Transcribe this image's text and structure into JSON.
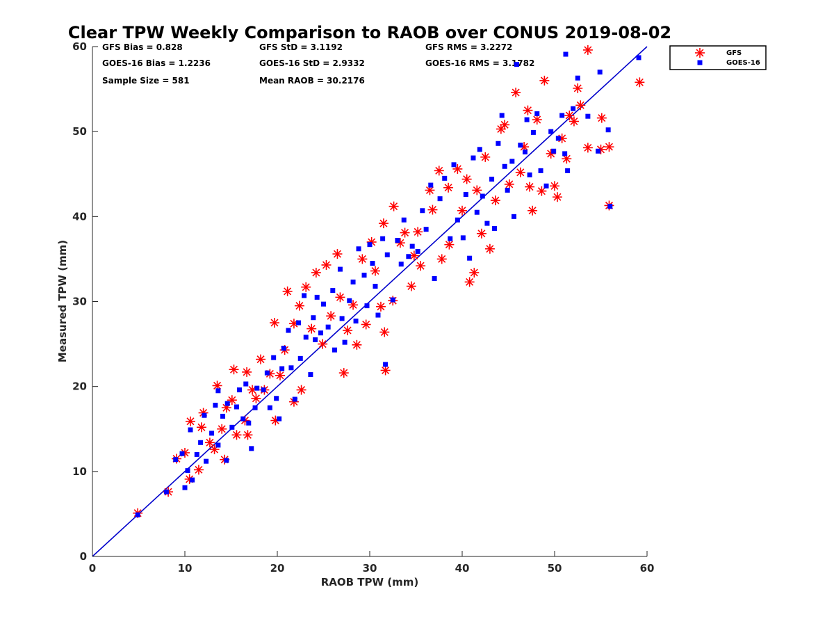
{
  "colors": {
    "gfs": "#ff0000",
    "goes": "#0000ff",
    "ref_line": "#0000cc",
    "axis": "#262626"
  },
  "stats": {
    "gfs_bias": "GFS Bias = 0.828",
    "goes_bias": "GOES-16 Bias = 1.2236",
    "sample_size": "Sample Size = 581",
    "gfs_std": "GFS StD = 3.1192",
    "goes_std": "GOES-16 StD = 2.9332",
    "mean_raob": "Mean RAOB = 30.2176",
    "gfs_rms": "GFS RMS = 3.2272",
    "goes_rms": "GOES-16 RMS = 3.1782"
  },
  "chart_data": {
    "type": "scatter",
    "title": "Clear TPW Weekly Comparison to RAOB over CONUS 2019-08-02",
    "xlabel": "RAOB TPW (mm)",
    "ylabel": "Measured TPW (mm)",
    "xlim": [
      0,
      60
    ],
    "ylim": [
      0,
      60
    ],
    "xticks": [
      "0",
      "10",
      "20",
      "30",
      "40",
      "50",
      "60"
    ],
    "yticks": [
      "0",
      "10",
      "20",
      "30",
      "40",
      "50",
      "60"
    ],
    "grid": false,
    "legend_position": "outside-top-right",
    "reference_line": "y = x",
    "series": [
      {
        "name": "GFS",
        "marker": "asterisk",
        "points": [
          [
            4.9,
            5.1
          ],
          [
            8.2,
            7.6
          ],
          [
            9.1,
            11.5
          ],
          [
            10.0,
            12.2
          ],
          [
            10.6,
            15.9
          ],
          [
            10.5,
            9.1
          ],
          [
            11.8,
            15.2
          ],
          [
            12.0,
            16.9
          ],
          [
            11.5,
            10.2
          ],
          [
            12.7,
            13.4
          ],
          [
            13.5,
            20.1
          ],
          [
            13.2,
            12.6
          ],
          [
            14.0,
            15.0
          ],
          [
            14.5,
            17.5
          ],
          [
            14.3,
            11.4
          ],
          [
            15.3,
            22.0
          ],
          [
            15.1,
            18.4
          ],
          [
            15.6,
            14.3
          ],
          [
            16.5,
            16.0
          ],
          [
            16.7,
            21.7
          ],
          [
            16.8,
            14.3
          ],
          [
            17.3,
            19.6
          ],
          [
            17.7,
            18.6
          ],
          [
            18.2,
            23.2
          ],
          [
            18.6,
            19.6
          ],
          [
            19.2,
            21.5
          ],
          [
            19.7,
            27.5
          ],
          [
            19.8,
            16.0
          ],
          [
            20.3,
            21.3
          ],
          [
            20.8,
            24.3
          ],
          [
            21.1,
            31.2
          ],
          [
            21.8,
            27.4
          ],
          [
            21.8,
            18.2
          ],
          [
            22.4,
            29.5
          ],
          [
            22.6,
            19.6
          ],
          [
            23.1,
            31.7
          ],
          [
            23.7,
            26.8
          ],
          [
            24.2,
            33.4
          ],
          [
            24.9,
            25.0
          ],
          [
            25.3,
            34.3
          ],
          [
            25.8,
            28.3
          ],
          [
            26.5,
            35.6
          ],
          [
            26.8,
            30.5
          ],
          [
            27.2,
            21.6
          ],
          [
            27.6,
            26.6
          ],
          [
            28.2,
            29.6
          ],
          [
            28.6,
            24.9
          ],
          [
            29.2,
            35.0
          ],
          [
            29.6,
            27.3
          ],
          [
            30.2,
            37.0
          ],
          [
            30.6,
            33.6
          ],
          [
            31.2,
            29.4
          ],
          [
            31.5,
            39.2
          ],
          [
            31.6,
            26.4
          ],
          [
            31.7,
            21.9
          ],
          [
            32.6,
            41.2
          ],
          [
            32.5,
            30.1
          ],
          [
            33.3,
            36.9
          ],
          [
            33.8,
            38.1
          ],
          [
            34.5,
            31.8
          ],
          [
            34.8,
            35.4
          ],
          [
            35.2,
            38.2
          ],
          [
            35.5,
            34.2
          ],
          [
            36.5,
            43.1
          ],
          [
            36.8,
            40.8
          ],
          [
            37.5,
            45.4
          ],
          [
            37.8,
            35.0
          ],
          [
            38.5,
            43.4
          ],
          [
            38.6,
            36.7
          ],
          [
            39.5,
            45.6
          ],
          [
            40.0,
            40.7
          ],
          [
            40.5,
            44.4
          ],
          [
            40.8,
            32.3
          ],
          [
            41.3,
            33.4
          ],
          [
            41.6,
            43.1
          ],
          [
            42.1,
            38.0
          ],
          [
            42.5,
            47.0
          ],
          [
            43.0,
            36.2
          ],
          [
            43.6,
            41.9
          ],
          [
            44.2,
            50.3
          ],
          [
            44.6,
            50.8
          ],
          [
            45.1,
            43.8
          ],
          [
            45.8,
            54.6
          ],
          [
            46.3,
            45.2
          ],
          [
            46.7,
            48.2
          ],
          [
            47.1,
            52.5
          ],
          [
            47.3,
            43.5
          ],
          [
            47.6,
            40.7
          ],
          [
            48.1,
            51.4
          ],
          [
            48.6,
            43.0
          ],
          [
            48.9,
            56.0
          ],
          [
            49.6,
            47.4
          ],
          [
            50.0,
            43.6
          ],
          [
            50.3,
            42.3
          ],
          [
            50.8,
            49.2
          ],
          [
            51.3,
            46.8
          ],
          [
            51.6,
            51.9
          ],
          [
            52.1,
            51.2
          ],
          [
            52.5,
            55.1
          ],
          [
            52.8,
            53.1
          ],
          [
            53.6,
            48.1
          ],
          [
            53.6,
            59.6
          ],
          [
            55.1,
            51.6
          ],
          [
            55.0,
            47.9
          ],
          [
            55.9,
            48.2
          ],
          [
            55.9,
            41.3
          ],
          [
            59.2,
            55.8
          ]
        ]
      },
      {
        "name": "GOES-16",
        "marker": "square",
        "points": [
          [
            4.9,
            4.9
          ],
          [
            8.0,
            7.6
          ],
          [
            9.0,
            11.4
          ],
          [
            9.7,
            12.1
          ],
          [
            10.0,
            8.1
          ],
          [
            10.3,
            10.1
          ],
          [
            10.6,
            14.9
          ],
          [
            10.8,
            9.0
          ],
          [
            11.3,
            12.0
          ],
          [
            11.7,
            13.4
          ],
          [
            12.1,
            16.6
          ],
          [
            12.3,
            11.2
          ],
          [
            12.9,
            14.5
          ],
          [
            13.3,
            17.8
          ],
          [
            13.6,
            19.5
          ],
          [
            13.6,
            13.1
          ],
          [
            14.1,
            16.5
          ],
          [
            14.5,
            11.3
          ],
          [
            14.6,
            18.0
          ],
          [
            15.1,
            15.2
          ],
          [
            15.6,
            17.6
          ],
          [
            15.9,
            19.6
          ],
          [
            16.3,
            16.2
          ],
          [
            16.6,
            20.3
          ],
          [
            16.9,
            15.7
          ],
          [
            17.2,
            12.7
          ],
          [
            17.6,
            17.5
          ],
          [
            17.8,
            19.8
          ],
          [
            18.5,
            19.6
          ],
          [
            18.9,
            21.6
          ],
          [
            19.2,
            17.5
          ],
          [
            19.6,
            23.4
          ],
          [
            19.9,
            18.6
          ],
          [
            20.2,
            16.2
          ],
          [
            20.5,
            22.1
          ],
          [
            20.7,
            24.5
          ],
          [
            21.2,
            26.6
          ],
          [
            21.5,
            22.2
          ],
          [
            21.9,
            18.5
          ],
          [
            22.3,
            27.5
          ],
          [
            22.5,
            23.3
          ],
          [
            22.9,
            30.7
          ],
          [
            23.1,
            25.8
          ],
          [
            23.6,
            21.4
          ],
          [
            23.9,
            28.1
          ],
          [
            24.1,
            25.5
          ],
          [
            24.3,
            30.5
          ],
          [
            24.7,
            26.3
          ],
          [
            25.0,
            29.7
          ],
          [
            25.5,
            27.0
          ],
          [
            26.0,
            31.3
          ],
          [
            26.2,
            24.3
          ],
          [
            26.8,
            33.8
          ],
          [
            27.0,
            28.0
          ],
          [
            27.3,
            25.2
          ],
          [
            27.8,
            30.1
          ],
          [
            28.2,
            32.3
          ],
          [
            28.5,
            27.7
          ],
          [
            28.8,
            36.2
          ],
          [
            29.4,
            33.1
          ],
          [
            29.7,
            29.5
          ],
          [
            30.0,
            36.7
          ],
          [
            30.3,
            34.5
          ],
          [
            30.6,
            31.8
          ],
          [
            30.9,
            28.4
          ],
          [
            31.4,
            37.4
          ],
          [
            31.7,
            22.6
          ],
          [
            31.9,
            35.5
          ],
          [
            32.5,
            30.2
          ],
          [
            33.0,
            37.2
          ],
          [
            33.4,
            34.4
          ],
          [
            33.7,
            39.6
          ],
          [
            34.2,
            35.3
          ],
          [
            34.6,
            36.5
          ],
          [
            35.2,
            35.9
          ],
          [
            35.7,
            40.7
          ],
          [
            36.1,
            38.5
          ],
          [
            36.6,
            43.7
          ],
          [
            37.0,
            32.7
          ],
          [
            37.6,
            42.1
          ],
          [
            38.1,
            44.5
          ],
          [
            38.7,
            37.4
          ],
          [
            39.1,
            46.1
          ],
          [
            39.5,
            39.6
          ],
          [
            40.1,
            37.5
          ],
          [
            40.4,
            42.6
          ],
          [
            40.8,
            35.1
          ],
          [
            41.2,
            46.9
          ],
          [
            41.6,
            40.5
          ],
          [
            41.9,
            47.9
          ],
          [
            42.2,
            42.4
          ],
          [
            42.7,
            39.2
          ],
          [
            43.2,
            44.4
          ],
          [
            43.5,
            38.6
          ],
          [
            43.9,
            48.6
          ],
          [
            44.3,
            51.9
          ],
          [
            44.6,
            45.9
          ],
          [
            44.9,
            43.1
          ],
          [
            45.4,
            46.5
          ],
          [
            45.6,
            40.0
          ],
          [
            45.9,
            57.9
          ],
          [
            46.3,
            48.4
          ],
          [
            46.8,
            47.6
          ],
          [
            47.0,
            51.4
          ],
          [
            47.3,
            44.9
          ],
          [
            47.7,
            49.9
          ],
          [
            48.1,
            52.1
          ],
          [
            48.5,
            45.4
          ],
          [
            49.1,
            43.6
          ],
          [
            49.6,
            50.0
          ],
          [
            49.9,
            47.7
          ],
          [
            50.4,
            49.2
          ],
          [
            50.8,
            51.9
          ],
          [
            51.1,
            47.4
          ],
          [
            51.2,
            59.1
          ],
          [
            51.4,
            45.4
          ],
          [
            52.0,
            52.7
          ],
          [
            52.5,
            56.3
          ],
          [
            53.6,
            51.8
          ],
          [
            54.9,
            57.0
          ],
          [
            54.7,
            47.7
          ],
          [
            55.8,
            50.2
          ],
          [
            56.0,
            41.2
          ],
          [
            59.1,
            58.7
          ]
        ]
      }
    ]
  }
}
